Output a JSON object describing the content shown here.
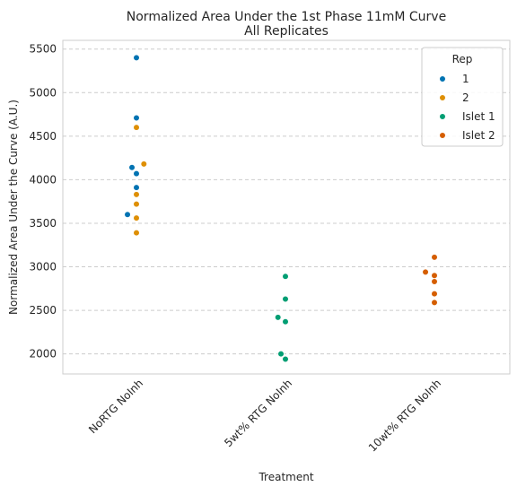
{
  "chart_data": {
    "type": "scatter",
    "title_line1": "Normalized Area Under the 1st Phase 11mM Curve",
    "title_line2": "All Replicates",
    "xlabel": "Treatment",
    "ylabel": "Normalized Area Under the Curve (A.U.)",
    "categories": [
      "NoRTG NoInh",
      "5wt% RTG NoInh",
      "10wt% RTG NoInh"
    ],
    "ylim": [
      1770,
      5600
    ],
    "yticks": [
      2000,
      2500,
      3000,
      3500,
      4000,
      4500,
      5000,
      5500
    ],
    "grid": true,
    "legend": {
      "title": "Rep",
      "placement": "top-right"
    },
    "series": [
      {
        "name": "1",
        "color": "#0173b2",
        "points": [
          {
            "category": 0,
            "y": 5400,
            "jitter": 0.0
          },
          {
            "category": 0,
            "y": 4710,
            "jitter": 0.0
          },
          {
            "category": 0,
            "y": 4140,
            "jitter": -0.03
          },
          {
            "category": 0,
            "y": 4070,
            "jitter": 0.0
          },
          {
            "category": 0,
            "y": 3910,
            "jitter": 0.0
          },
          {
            "category": 0,
            "y": 3600,
            "jitter": -0.06
          }
        ]
      },
      {
        "name": "2",
        "color": "#de8f05",
        "points": [
          {
            "category": 0,
            "y": 4600,
            "jitter": 0.0
          },
          {
            "category": 0,
            "y": 4180,
            "jitter": 0.05
          },
          {
            "category": 0,
            "y": 3830,
            "jitter": 0.0
          },
          {
            "category": 0,
            "y": 3720,
            "jitter": 0.0
          },
          {
            "category": 0,
            "y": 3560,
            "jitter": 0.0
          },
          {
            "category": 0,
            "y": 3390,
            "jitter": 0.0
          }
        ]
      },
      {
        "name": "Islet 1",
        "color": "#029e73",
        "points": [
          {
            "category": 1,
            "y": 2890,
            "jitter": 0.0
          },
          {
            "category": 1,
            "y": 2630,
            "jitter": 0.0
          },
          {
            "category": 1,
            "y": 2420,
            "jitter": -0.05
          },
          {
            "category": 1,
            "y": 2370,
            "jitter": 0.0
          },
          {
            "category": 1,
            "y": 2000,
            "jitter": -0.03
          },
          {
            "category": 1,
            "y": 1940,
            "jitter": 0.0
          }
        ]
      },
      {
        "name": "Islet 2",
        "color": "#d55e00",
        "points": [
          {
            "category": 2,
            "y": 3110,
            "jitter": 0.0
          },
          {
            "category": 2,
            "y": 2940,
            "jitter": -0.06
          },
          {
            "category": 2,
            "y": 2900,
            "jitter": 0.0
          },
          {
            "category": 2,
            "y": 2830,
            "jitter": 0.0
          },
          {
            "category": 2,
            "y": 2690,
            "jitter": 0.0
          },
          {
            "category": 2,
            "y": 2590,
            "jitter": 0.0
          }
        ]
      }
    ]
  }
}
